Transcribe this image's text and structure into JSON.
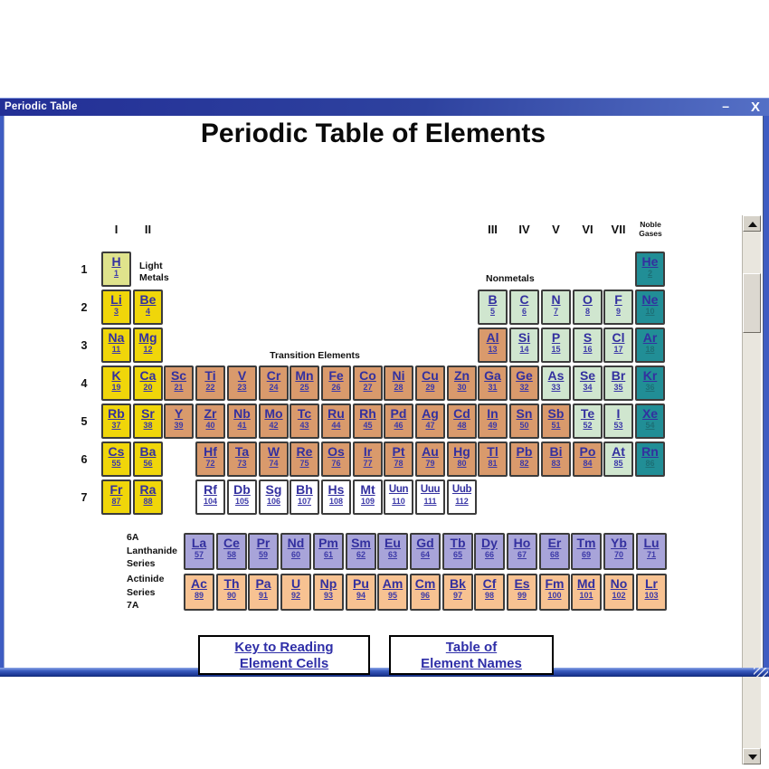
{
  "window": {
    "title": "Periodic Table",
    "controls": {
      "minimize": "–",
      "close": "X"
    }
  },
  "heading": "Periodic Table of Elements",
  "group_headers": [
    {
      "label": "I",
      "col": 0
    },
    {
      "label": "II",
      "col": 1
    },
    {
      "label": "III",
      "col": 12
    },
    {
      "label": "IV",
      "col": 13
    },
    {
      "label": "V",
      "col": 14
    },
    {
      "label": "VI",
      "col": 15
    },
    {
      "label": "VII",
      "col": 16
    }
  ],
  "noble_header": {
    "lines": [
      "Noble",
      "Gases"
    ],
    "col": 17
  },
  "period_labels": [
    "1",
    "2",
    "3",
    "4",
    "5",
    "6",
    "7"
  ],
  "labels": {
    "light_metals": [
      "Light",
      "Metals"
    ],
    "nonmetals": "Nonmetals",
    "transition": "Transition Elements",
    "lanthanide_caption": [
      "6A",
      "Lanthanide",
      "Series"
    ],
    "actinide_caption": [
      "Actinide",
      "Series",
      "7A"
    ]
  },
  "element_rows": [
    {
      "period": "1",
      "cells": [
        {
          "sym": "H",
          "num": "1",
          "col": 0,
          "cat": "hydrogen"
        },
        {
          "sym": "He",
          "num": "2",
          "col": 17,
          "cat": "noble_gas"
        }
      ]
    },
    {
      "period": "2",
      "cells": [
        {
          "sym": "Li",
          "num": "3",
          "col": 0,
          "cat": "alkali"
        },
        {
          "sym": "Be",
          "num": "4",
          "col": 1,
          "cat": "alkali"
        },
        {
          "sym": "B",
          "num": "5",
          "col": 12,
          "cat": "nonmetal"
        },
        {
          "sym": "C",
          "num": "6",
          "col": 13,
          "cat": "nonmetal"
        },
        {
          "sym": "N",
          "num": "7",
          "col": 14,
          "cat": "nonmetal"
        },
        {
          "sym": "O",
          "num": "8",
          "col": 15,
          "cat": "nonmetal"
        },
        {
          "sym": "F",
          "num": "9",
          "col": 16,
          "cat": "nonmetal"
        },
        {
          "sym": "Ne",
          "num": "10",
          "col": 17,
          "cat": "noble_gas"
        }
      ]
    },
    {
      "period": "3",
      "cells": [
        {
          "sym": "Na",
          "num": "11",
          "col": 0,
          "cat": "alkali"
        },
        {
          "sym": "Mg",
          "num": "12",
          "col": 1,
          "cat": "alkali"
        },
        {
          "sym": "Al",
          "num": "13",
          "col": 12,
          "cat": "transition_metal"
        },
        {
          "sym": "Si",
          "num": "14",
          "col": 13,
          "cat": "nonmetal"
        },
        {
          "sym": "P",
          "num": "15",
          "col": 14,
          "cat": "nonmetal"
        },
        {
          "sym": "S",
          "num": "16",
          "col": 15,
          "cat": "nonmetal"
        },
        {
          "sym": "Cl",
          "num": "17",
          "col": 16,
          "cat": "nonmetal"
        },
        {
          "sym": "Ar",
          "num": "18",
          "col": 17,
          "cat": "noble_gas"
        }
      ]
    },
    {
      "period": "4",
      "cells": [
        {
          "sym": "K",
          "num": "19",
          "col": 0,
          "cat": "alkali"
        },
        {
          "sym": "Ca",
          "num": "20",
          "col": 1,
          "cat": "alkali"
        },
        {
          "sym": "Sc",
          "num": "21",
          "col": 2,
          "cat": "transition_metal"
        },
        {
          "sym": "Ti",
          "num": "22",
          "col": 3,
          "cat": "transition_metal"
        },
        {
          "sym": "V",
          "num": "23",
          "col": 4,
          "cat": "transition_metal"
        },
        {
          "sym": "Cr",
          "num": "24",
          "col": 5,
          "cat": "transition_metal"
        },
        {
          "sym": "Mn",
          "num": "25",
          "col": 6,
          "cat": "transition_metal"
        },
        {
          "sym": "Fe",
          "num": "26",
          "col": 7,
          "cat": "transition_metal"
        },
        {
          "sym": "Co",
          "num": "27",
          "col": 8,
          "cat": "transition_metal"
        },
        {
          "sym": "Ni",
          "num": "28",
          "col": 9,
          "cat": "transition_metal"
        },
        {
          "sym": "Cu",
          "num": "29",
          "col": 10,
          "cat": "transition_metal"
        },
        {
          "sym": "Zn",
          "num": "30",
          "col": 11,
          "cat": "transition_metal"
        },
        {
          "sym": "Ga",
          "num": "31",
          "col": 12,
          "cat": "transition_metal"
        },
        {
          "sym": "Ge",
          "num": "32",
          "col": 13,
          "cat": "transition_metal"
        },
        {
          "sym": "As",
          "num": "33",
          "col": 14,
          "cat": "nonmetal"
        },
        {
          "sym": "Se",
          "num": "34",
          "col": 15,
          "cat": "nonmetal"
        },
        {
          "sym": "Br",
          "num": "35",
          "col": 16,
          "cat": "nonmetal"
        },
        {
          "sym": "Kr",
          "num": "36",
          "col": 17,
          "cat": "noble_gas"
        }
      ]
    },
    {
      "period": "5",
      "cells": [
        {
          "sym": "Rb",
          "num": "37",
          "col": 0,
          "cat": "alkali"
        },
        {
          "sym": "Sr",
          "num": "38",
          "col": 1,
          "cat": "alkali"
        },
        {
          "sym": "Y",
          "num": "39",
          "col": 2,
          "cat": "transition_metal"
        },
        {
          "sym": "Zr",
          "num": "40",
          "col": 3,
          "cat": "transition_metal"
        },
        {
          "sym": "Nb",
          "num": "41",
          "col": 4,
          "cat": "transition_metal"
        },
        {
          "sym": "Mo",
          "num": "42",
          "col": 5,
          "cat": "transition_metal"
        },
        {
          "sym": "Tc",
          "num": "43",
          "col": 6,
          "cat": "transition_metal"
        },
        {
          "sym": "Ru",
          "num": "44",
          "col": 7,
          "cat": "transition_metal"
        },
        {
          "sym": "Rh",
          "num": "45",
          "col": 8,
          "cat": "transition_metal"
        },
        {
          "sym": "Pd",
          "num": "46",
          "col": 9,
          "cat": "transition_metal"
        },
        {
          "sym": "Ag",
          "num": "47",
          "col": 10,
          "cat": "transition_metal"
        },
        {
          "sym": "Cd",
          "num": "48",
          "col": 11,
          "cat": "transition_metal"
        },
        {
          "sym": "In",
          "num": "49",
          "col": 12,
          "cat": "transition_metal"
        },
        {
          "sym": "Sn",
          "num": "50",
          "col": 13,
          "cat": "transition_metal"
        },
        {
          "sym": "Sb",
          "num": "51",
          "col": 14,
          "cat": "transition_metal"
        },
        {
          "sym": "Te",
          "num": "52",
          "col": 15,
          "cat": "nonmetal"
        },
        {
          "sym": "I",
          "num": "53",
          "col": 16,
          "cat": "nonmetal"
        },
        {
          "sym": "Xe",
          "num": "54",
          "col": 17,
          "cat": "noble_gas"
        }
      ]
    },
    {
      "period": "6",
      "cells": [
        {
          "sym": "Cs",
          "num": "55",
          "col": 0,
          "cat": "alkali"
        },
        {
          "sym": "Ba",
          "num": "56",
          "col": 1,
          "cat": "alkali"
        },
        {
          "sym": "Hf",
          "num": "72",
          "col": 3,
          "cat": "transition_metal"
        },
        {
          "sym": "Ta",
          "num": "73",
          "col": 4,
          "cat": "transition_metal"
        },
        {
          "sym": "W",
          "num": "74",
          "col": 5,
          "cat": "transition_metal"
        },
        {
          "sym": "Re",
          "num": "75",
          "col": 6,
          "cat": "transition_metal"
        },
        {
          "sym": "Os",
          "num": "76",
          "col": 7,
          "cat": "transition_metal"
        },
        {
          "sym": "Ir",
          "num": "77",
          "col": 8,
          "cat": "transition_metal"
        },
        {
          "sym": "Pt",
          "num": "78",
          "col": 9,
          "cat": "transition_metal"
        },
        {
          "sym": "Au",
          "num": "79",
          "col": 10,
          "cat": "transition_metal"
        },
        {
          "sym": "Hg",
          "num": "80",
          "col": 11,
          "cat": "transition_metal"
        },
        {
          "sym": "Tl",
          "num": "81",
          "col": 12,
          "cat": "transition_metal"
        },
        {
          "sym": "Pb",
          "num": "82",
          "col": 13,
          "cat": "transition_metal"
        },
        {
          "sym": "Bi",
          "num": "83",
          "col": 14,
          "cat": "transition_metal"
        },
        {
          "sym": "Po",
          "num": "84",
          "col": 15,
          "cat": "transition_metal"
        },
        {
          "sym": "At",
          "num": "85",
          "col": 16,
          "cat": "nonmetal"
        },
        {
          "sym": "Rn",
          "num": "86",
          "col": 17,
          "cat": "noble_gas"
        }
      ]
    },
    {
      "period": "7",
      "cells": [
        {
          "sym": "Fr",
          "num": "87",
          "col": 0,
          "cat": "alkali"
        },
        {
          "sym": "Ra",
          "num": "88",
          "col": 1,
          "cat": "alkali"
        },
        {
          "sym": "Rf",
          "num": "104",
          "col": 3,
          "cat": "undiscovered"
        },
        {
          "sym": "Db",
          "num": "105",
          "col": 4,
          "cat": "undiscovered"
        },
        {
          "sym": "Sg",
          "num": "106",
          "col": 5,
          "cat": "undiscovered"
        },
        {
          "sym": "Bh",
          "num": "107",
          "col": 6,
          "cat": "undiscovered"
        },
        {
          "sym": "Hs",
          "num": "108",
          "col": 7,
          "cat": "undiscovered"
        },
        {
          "sym": "Mt",
          "num": "109",
          "col": 8,
          "cat": "undiscovered"
        },
        {
          "sym": "Uun",
          "num": "110",
          "col": 9,
          "cat": "undiscovered"
        },
        {
          "sym": "Uuu",
          "num": "111",
          "col": 10,
          "cat": "undiscovered"
        },
        {
          "sym": "Uub",
          "num": "112",
          "col": 11,
          "cat": "undiscovered"
        }
      ]
    }
  ],
  "lanthanides": [
    {
      "sym": "La",
      "num": "57"
    },
    {
      "sym": "Ce",
      "num": "58"
    },
    {
      "sym": "Pr",
      "num": "59"
    },
    {
      "sym": "Nd",
      "num": "60"
    },
    {
      "sym": "Pm",
      "num": "61"
    },
    {
      "sym": "Sm",
      "num": "62"
    },
    {
      "sym": "Eu",
      "num": "63"
    },
    {
      "sym": "Gd",
      "num": "64"
    },
    {
      "sym": "Tb",
      "num": "65"
    },
    {
      "sym": "Dy",
      "num": "66"
    },
    {
      "sym": "Ho",
      "num": "67"
    },
    {
      "sym": "Er",
      "num": "68"
    },
    {
      "sym": "Tm",
      "num": "69"
    },
    {
      "sym": "Yb",
      "num": "70"
    },
    {
      "sym": "Lu",
      "num": "71"
    }
  ],
  "actinides": [
    {
      "sym": "Ac",
      "num": "89"
    },
    {
      "sym": "Th",
      "num": "90"
    },
    {
      "sym": "Pa",
      "num": "91"
    },
    {
      "sym": "U",
      "num": "92"
    },
    {
      "sym": "Np",
      "num": "93"
    },
    {
      "sym": "Pu",
      "num": "94"
    },
    {
      "sym": "Am",
      "num": "95"
    },
    {
      "sym": "Cm",
      "num": "96"
    },
    {
      "sym": "Bk",
      "num": "97"
    },
    {
      "sym": "Cf",
      "num": "98"
    },
    {
      "sym": "Es",
      "num": "99"
    },
    {
      "sym": "Fm",
      "num": "100"
    },
    {
      "sym": "Md",
      "num": "101"
    },
    {
      "sym": "No",
      "num": "102"
    },
    {
      "sym": "Lr",
      "num": "103"
    }
  ],
  "nav_buttons": [
    {
      "id": "key-to-reading",
      "lines": [
        "Key to Reading",
        "Element Cells"
      ]
    },
    {
      "id": "table-of-names",
      "lines": [
        "Table of",
        "Element Names"
      ]
    }
  ],
  "colors": {
    "alkali": "#F0D60A",
    "hydrogen": "#DFE38C",
    "transition_metal": "#D99A6C",
    "nonmetal": "#D0E6CF",
    "noble_gas": "#218E96",
    "undiscovered": "#FFFFFF",
    "lanthanide": "#A8A4D9",
    "actinide": "#F7C292",
    "link_text": "#33309F",
    "titlebar_blue": "#2E429F",
    "window_border": "#3E5CC2"
  }
}
